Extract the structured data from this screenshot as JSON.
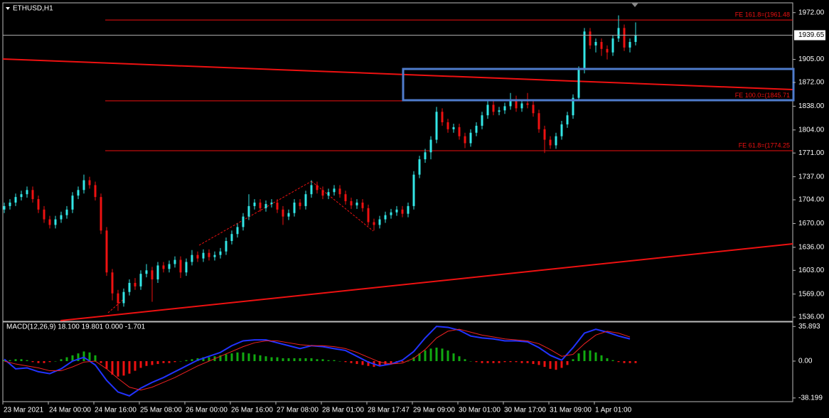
{
  "chart_data": [
    {
      "type": "candlestick",
      "title": "ETHUSD,H1",
      "up_color": "#33e6e6",
      "down_color": "#ee1111",
      "open": [
        1690,
        1695,
        1700,
        1708,
        1712,
        1718,
        1705,
        1690,
        1676,
        1668,
        1676,
        1682,
        1690,
        1710,
        1718,
        1732,
        1725,
        1708,
        1660,
        1600,
        1570,
        1556,
        1572,
        1585,
        1580,
        1598,
        1603,
        1590,
        1610,
        1605,
        1612,
        1618,
        1600,
        1615,
        1625,
        1620,
        1628,
        1622,
        1625,
        1630,
        1645,
        1655,
        1665,
        1680,
        1695,
        1700,
        1692,
        1698,
        1700,
        1690,
        1680,
        1685,
        1700,
        1695,
        1712,
        1725,
        1718,
        1710,
        1715,
        1720,
        1712,
        1702,
        1696,
        1700,
        1692,
        1672,
        1668,
        1676,
        1682,
        1686,
        1690,
        1684,
        1695,
        1740,
        1762,
        1772,
        1790,
        1830,
        1815,
        1805,
        1808,
        1795,
        1785,
        1800,
        1810,
        1825,
        1840,
        1830,
        1832,
        1838,
        1848,
        1835,
        1842,
        1840,
        1828,
        1805,
        1790,
        1782,
        1795,
        1812,
        1825,
        1850,
        1890,
        1945,
        1925,
        1930,
        1920,
        1915,
        1935,
        1950,
        1922,
        1930
      ],
      "high": [
        1700,
        1705,
        1713,
        1717,
        1723,
        1723,
        1710,
        1695,
        1681,
        1681,
        1687,
        1695,
        1715,
        1723,
        1740,
        1737,
        1730,
        1713,
        1665,
        1605,
        1575,
        1577,
        1590,
        1592,
        1603,
        1612,
        1608,
        1615,
        1615,
        1617,
        1623,
        1623,
        1620,
        1632,
        1630,
        1633,
        1633,
        1630,
        1635,
        1650,
        1660,
        1670,
        1685,
        1712,
        1705,
        1705,
        1703,
        1705,
        1705,
        1695,
        1690,
        1705,
        1705,
        1717,
        1732,
        1730,
        1723,
        1720,
        1725,
        1725,
        1717,
        1707,
        1705,
        1705,
        1697,
        1677,
        1681,
        1687,
        1691,
        1695,
        1695,
        1700,
        1745,
        1767,
        1777,
        1795,
        1837,
        1835,
        1820,
        1813,
        1813,
        1800,
        1805,
        1815,
        1830,
        1848,
        1845,
        1837,
        1843,
        1857,
        1853,
        1847,
        1857,
        1845,
        1833,
        1810,
        1795,
        1800,
        1817,
        1830,
        1855,
        1895,
        1950,
        1950,
        1935,
        1935,
        1925,
        1940,
        1968,
        1955,
        1935,
        1958
      ],
      "low": [
        1685,
        1690,
        1695,
        1703,
        1707,
        1700,
        1685,
        1671,
        1663,
        1663,
        1671,
        1677,
        1685,
        1705,
        1713,
        1720,
        1703,
        1655,
        1595,
        1560,
        1545,
        1551,
        1567,
        1575,
        1575,
        1593,
        1558,
        1585,
        1600,
        1600,
        1607,
        1592,
        1595,
        1610,
        1615,
        1615,
        1617,
        1617,
        1620,
        1625,
        1640,
        1650,
        1660,
        1675,
        1690,
        1687,
        1687,
        1693,
        1685,
        1668,
        1675,
        1680,
        1690,
        1690,
        1707,
        1713,
        1705,
        1705,
        1710,
        1707,
        1697,
        1691,
        1691,
        1687,
        1667,
        1660,
        1663,
        1671,
        1677,
        1681,
        1679,
        1679,
        1690,
        1735,
        1757,
        1762,
        1785,
        1810,
        1800,
        1800,
        1790,
        1778,
        1780,
        1795,
        1805,
        1820,
        1825,
        1825,
        1827,
        1833,
        1830,
        1830,
        1835,
        1823,
        1800,
        1771,
        1777,
        1777,
        1790,
        1807,
        1820,
        1845,
        1885,
        1920,
        1915,
        1910,
        1905,
        1910,
        1930,
        1917,
        1915,
        1925
      ],
      "close": [
        1695,
        1700,
        1708,
        1712,
        1718,
        1705,
        1690,
        1676,
        1668,
        1676,
        1682,
        1690,
        1710,
        1718,
        1732,
        1725,
        1708,
        1660,
        1600,
        1570,
        1556,
        1572,
        1585,
        1580,
        1598,
        1603,
        1590,
        1610,
        1605,
        1612,
        1618,
        1600,
        1615,
        1625,
        1620,
        1628,
        1622,
        1625,
        1630,
        1645,
        1655,
        1665,
        1680,
        1695,
        1700,
        1692,
        1698,
        1700,
        1690,
        1680,
        1685,
        1700,
        1695,
        1712,
        1725,
        1718,
        1710,
        1715,
        1720,
        1712,
        1702,
        1696,
        1700,
        1692,
        1672,
        1668,
        1676,
        1682,
        1686,
        1690,
        1684,
        1695,
        1740,
        1762,
        1772,
        1790,
        1830,
        1815,
        1805,
        1808,
        1795,
        1785,
        1800,
        1810,
        1825,
        1840,
        1830,
        1832,
        1838,
        1848,
        1835,
        1842,
        1840,
        1828,
        1805,
        1790,
        1782,
        1795,
        1812,
        1825,
        1850,
        1890,
        1945,
        1925,
        1930,
        1920,
        1915,
        1935,
        1950,
        1922,
        1930,
        1940
      ],
      "ylim": [
        1530,
        1986
      ],
      "yticks": [
        {
          "value": 1972,
          "label": "1972.00"
        },
        {
          "value": 1905,
          "label": "1905.00"
        },
        {
          "value": 1872,
          "label": "1872.00"
        },
        {
          "value": 1838,
          "label": "1838.00"
        },
        {
          "value": 1804,
          "label": "1804.00"
        },
        {
          "value": 1771,
          "label": "1771.00"
        },
        {
          "value": 1737,
          "label": "1737.00"
        },
        {
          "value": 1704,
          "label": "1704.00"
        },
        {
          "value": 1670,
          "label": "1670.00"
        },
        {
          "value": 1636,
          "label": "1636.00"
        },
        {
          "value": 1603,
          "label": "1603.00"
        },
        {
          "value": 1569,
          "label": "1569.00"
        },
        {
          "value": 1536,
          "label": "1536.00"
        }
      ],
      "last_price": {
        "value": 1939.65,
        "label": "1939.65"
      },
      "fib_levels": [
        {
          "value": 1961.48,
          "label": "FE 161.8=(1961.48"
        },
        {
          "value": 1845.71,
          "label": "FE 100.0=(1845.71"
        },
        {
          "value": 1774.25,
          "label": "FE 61.8=(1774.25"
        }
      ],
      "x_labels": [
        "23 Mar 2021",
        "24 Mar 00:00",
        "24 Mar 16:00",
        "25 Mar 08:00",
        "26 Mar 00:00",
        "26 Mar 16:00",
        "27 Mar 08:00",
        "28 Mar 01:00",
        "28 Mar 17:47",
        "29 Mar 09:00",
        "30 Mar 01:00",
        "30 Mar 17:00",
        "31 Mar 09:00",
        "1 Apr 01:00"
      ]
    },
    {
      "type": "macd",
      "title": "MACD(12,26,9) 18.100 19.801 0.000 -1.701",
      "histogram": [
        1,
        1,
        2,
        2,
        1,
        -1,
        -2,
        -2,
        -1,
        0,
        2,
        4,
        6,
        8,
        10,
        9,
        6,
        -2,
        -8,
        -14,
        -16,
        -15,
        -13,
        -10,
        -7,
        -5,
        -4,
        -3,
        -2,
        -2,
        -1,
        0,
        1,
        2,
        3,
        4,
        4,
        5,
        6,
        7,
        8,
        9,
        9,
        8,
        7,
        6,
        5,
        4,
        4,
        3,
        3,
        3,
        3,
        3,
        3,
        2,
        2,
        1,
        1,
        0,
        -1,
        -2,
        -3,
        -4,
        -5,
        -6,
        -5,
        -4,
        -3,
        -2,
        -1,
        0,
        4,
        8,
        11,
        13,
        14,
        13,
        11,
        8,
        5,
        2,
        0,
        -1,
        -2,
        -2,
        -2,
        -2,
        -1,
        -1,
        -1,
        -2,
        -2,
        -3,
        -4,
        -6,
        -8,
        -9,
        -7,
        -4,
        2,
        8,
        11,
        11,
        9,
        6,
        3,
        1,
        -1,
        -2,
        -2,
        -2
      ],
      "pos_color": "#11aa11",
      "neg_color": "#ee1111",
      "series": [
        {
          "color": "#2233ff",
          "values": [
            2,
            -8,
            -7,
            -11,
            -13,
            -8,
            0,
            4,
            -4,
            -20,
            -32,
            -36,
            -28,
            -22,
            -17,
            -11,
            -5,
            1,
            5,
            9,
            16,
            21,
            22,
            22,
            19,
            16,
            13,
            16,
            15,
            13,
            11,
            5,
            -1,
            -5,
            -3,
            1,
            10,
            24,
            36,
            35,
            32,
            26,
            24,
            23,
            21,
            21,
            20,
            14,
            6,
            1,
            14,
            29,
            33,
            30,
            26,
            23
          ]
        },
        {
          "color": "#ee2222",
          "values": [
            0,
            -3,
            -5,
            -7,
            -10,
            -10,
            -6,
            -1,
            0,
            -8,
            -18,
            -27,
            -30,
            -27,
            -22,
            -17,
            -11,
            -5,
            0,
            5,
            10,
            15,
            19,
            21,
            21,
            19,
            17,
            16,
            16,
            15,
            13,
            9,
            4,
            -1,
            -3,
            -2,
            3,
            12,
            24,
            31,
            33,
            30,
            27,
            25,
            23,
            22,
            21,
            18,
            12,
            5,
            7,
            18,
            27,
            31,
            29,
            25
          ]
        }
      ],
      "ylim": [
        -42,
        40.5
      ],
      "yticks": [
        35.893,
        {
          "value": 0,
          "label": "0.00"
        },
        -38.199
      ]
    }
  ]
}
